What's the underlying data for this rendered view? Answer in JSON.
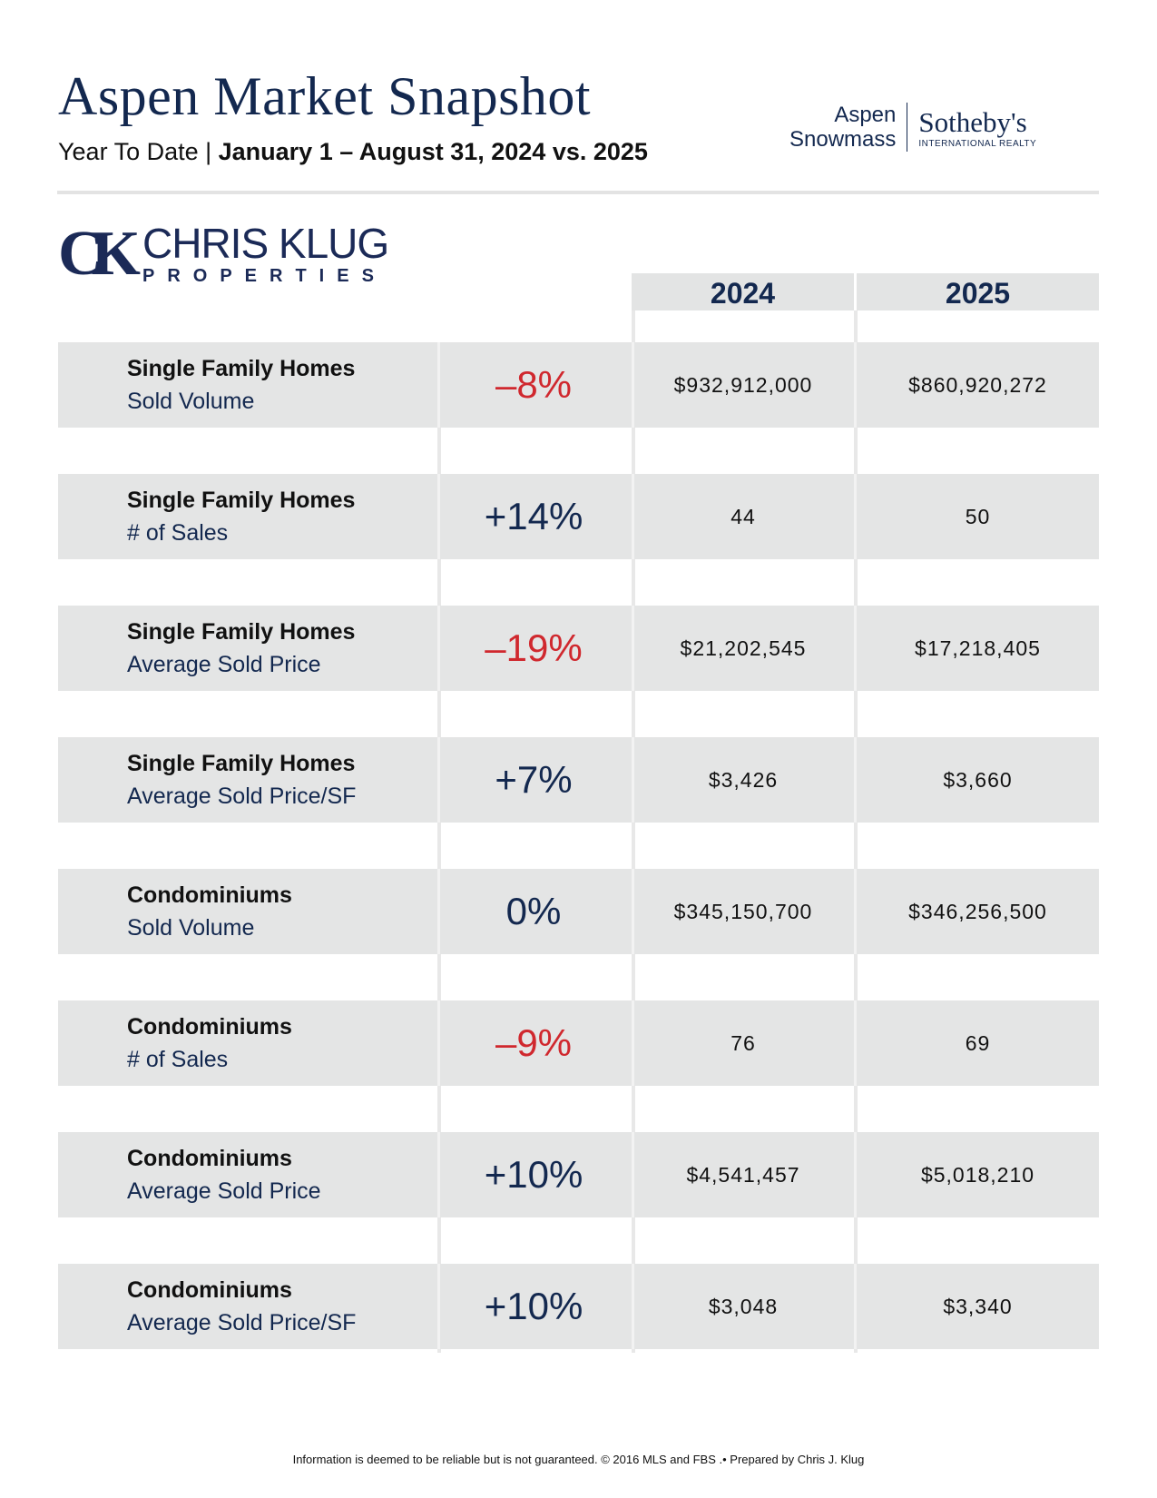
{
  "header": {
    "title": "Aspen Market Snapshot",
    "subtitle_prefix": "Year To Date | ",
    "subtitle_range": "January 1 – August 31, 2024 vs. 2025"
  },
  "brand": {
    "line1": "Aspen",
    "line2": "Snowmass",
    "name": "Sotheby's",
    "tagline": "INTERNATIONAL REALTY"
  },
  "logo": {
    "monogram": "CK",
    "name": "CHRIS KLUG",
    "sub": "PROPERTIES"
  },
  "columns": [
    "2024",
    "2025"
  ],
  "colors": {
    "navy": "#13284f",
    "red": "#d0282e",
    "row_bg": "#e4e5e5"
  },
  "rows": [
    {
      "category": "Single Family Homes",
      "metric": "Sold Volume",
      "change": "–8%",
      "dir": "down",
      "v2024": "$932,912,000",
      "v2025": "$860,920,272"
    },
    {
      "category": "Single Family Homes",
      "metric": "# of Sales",
      "change": "+14%",
      "dir": "up",
      "v2024": "44",
      "v2025": "50"
    },
    {
      "category": "Single Family Homes",
      "metric": "Average Sold Price",
      "change": "–19%",
      "dir": "down",
      "v2024": "$21,202,545",
      "v2025": "$17,218,405"
    },
    {
      "category": "Single Family Homes",
      "metric": "Average Sold Price/SF",
      "change": "+7%",
      "dir": "up",
      "v2024": "$3,426",
      "v2025": "$3,660"
    },
    {
      "category": "Condominiums",
      "metric": "Sold Volume",
      "change": "0%",
      "dir": "up",
      "v2024": "$345,150,700",
      "v2025": "$346,256,500"
    },
    {
      "category": "Condominiums",
      "metric": "# of Sales",
      "change": "–9%",
      "dir": "down",
      "v2024": "76",
      "v2025": "69"
    },
    {
      "category": "Condominiums",
      "metric": "Average Sold Price",
      "change": "+10%",
      "dir": "up",
      "v2024": "$4,541,457",
      "v2025": "$5,018,210"
    },
    {
      "category": "Condominiums",
      "metric": "Average Sold Price/SF",
      "change": "+10%",
      "dir": "up",
      "v2024": "$3,048",
      "v2025": "$3,340"
    }
  ],
  "footer": "Information is deemed to be reliable but is not guaranteed. © 2016 MLS and FBS .• Prepared by Chris J. Klug"
}
